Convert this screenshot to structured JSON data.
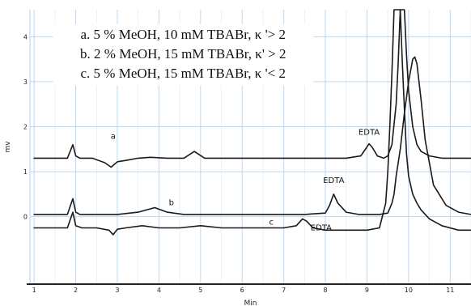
{
  "chart_data": {
    "type": "line",
    "xlabel": "Min",
    "ylabel": "mv",
    "xlim": [
      0.9,
      11.5
    ],
    "ylim": [
      -1.5,
      4.6
    ],
    "x_ticks": [
      "1",
      "2",
      "3",
      "4",
      "5",
      "6",
      "7",
      "8",
      "9",
      "10",
      "11"
    ],
    "y_ticks": [
      "0",
      "1",
      "2",
      "3",
      "4"
    ],
    "grid": true,
    "colors": {
      "trace": "#1a1a1a",
      "grid": "#bcd9f2",
      "baseline": "#222222"
    },
    "legend": [
      "a. 5 % MeOH, 10 mM TBABr, κ '> 2",
      "b. 2 % MeOH, 15 mM TBABr, κ' > 2",
      "c. 5 % MeOH, 15 mM TBABr, κ '< 2"
    ],
    "legend_placement": "top-left",
    "series": [
      {
        "name": "a",
        "label": "a",
        "label_at": [
          2.9,
          1.73
        ],
        "x": [
          1.0,
          1.8,
          1.93,
          2.0,
          2.1,
          2.4,
          2.7,
          2.85,
          3.0,
          3.2,
          3.5,
          3.8,
          4.2,
          4.6,
          4.85,
          5.1,
          5.5,
          6.0,
          6.5,
          7.0,
          7.5,
          8.0,
          8.5,
          8.85,
          9.0,
          9.05,
          9.12,
          9.25,
          9.4,
          9.5,
          9.6,
          9.7,
          9.75,
          9.8,
          9.85,
          9.9,
          9.95,
          10.0,
          10.1,
          10.2,
          10.3,
          10.5,
          10.8,
          11.2,
          11.5
        ],
        "y": [
          1.3,
          1.3,
          1.6,
          1.35,
          1.3,
          1.3,
          1.2,
          1.1,
          1.22,
          1.25,
          1.3,
          1.32,
          1.3,
          1.3,
          1.45,
          1.3,
          1.3,
          1.3,
          1.3,
          1.3,
          1.3,
          1.3,
          1.3,
          1.35,
          1.55,
          1.62,
          1.55,
          1.35,
          1.3,
          1.35,
          1.6,
          2.5,
          3.4,
          4.6,
          4.6,
          4.6,
          3.6,
          2.8,
          2.0,
          1.6,
          1.45,
          1.35,
          1.3,
          1.3,
          1.3
        ]
      },
      {
        "name": "b",
        "label": "b",
        "label_at": [
          4.3,
          0.25
        ],
        "x": [
          1.0,
          1.8,
          1.93,
          2.0,
          2.1,
          2.5,
          2.8,
          3.0,
          3.5,
          3.9,
          4.2,
          4.6,
          5.0,
          5.5,
          6.0,
          6.5,
          7.0,
          7.5,
          8.0,
          8.1,
          8.2,
          8.3,
          8.5,
          8.8,
          9.0,
          9.3,
          9.5,
          9.6,
          9.65,
          9.7,
          9.8,
          9.9,
          10.0,
          10.1,
          10.15,
          10.2,
          10.3,
          10.4,
          10.6,
          10.9,
          11.2,
          11.5
        ],
        "y": [
          0.05,
          0.05,
          0.4,
          0.1,
          0.05,
          0.05,
          0.05,
          0.05,
          0.1,
          0.2,
          0.1,
          0.05,
          0.05,
          0.05,
          0.05,
          0.05,
          0.05,
          0.05,
          0.08,
          0.25,
          0.5,
          0.3,
          0.1,
          0.05,
          0.05,
          0.05,
          0.08,
          0.3,
          0.5,
          0.9,
          1.5,
          2.3,
          3.0,
          3.5,
          3.55,
          3.4,
          2.6,
          1.7,
          0.7,
          0.25,
          0.1,
          0.05
        ]
      },
      {
        "name": "c",
        "label": "c",
        "label_at": [
          6.7,
          -0.18
        ],
        "x": [
          1.0,
          1.8,
          1.93,
          2.0,
          2.15,
          2.5,
          2.8,
          2.9,
          3.0,
          3.2,
          3.6,
          4.0,
          4.5,
          5.0,
          5.5,
          6.0,
          6.5,
          7.0,
          7.3,
          7.45,
          7.55,
          7.7,
          8.0,
          8.5,
          9.0,
          9.3,
          9.45,
          9.5,
          9.55,
          9.6,
          9.65,
          9.7,
          9.75,
          9.8,
          9.85,
          9.9,
          9.95,
          10.0,
          10.1,
          10.2,
          10.3,
          10.5,
          10.8,
          11.2,
          11.5
        ],
        "y": [
          -0.25,
          -0.25,
          0.1,
          -0.2,
          -0.25,
          -0.25,
          -0.3,
          -0.4,
          -0.28,
          -0.25,
          -0.2,
          -0.25,
          -0.25,
          -0.2,
          -0.25,
          -0.25,
          -0.25,
          -0.25,
          -0.2,
          -0.05,
          -0.1,
          -0.25,
          -0.3,
          -0.3,
          -0.3,
          -0.25,
          0.3,
          1.0,
          2.0,
          3.2,
          4.6,
          4.6,
          4.6,
          4.6,
          3.4,
          2.4,
          1.4,
          0.9,
          0.5,
          0.3,
          0.15,
          -0.05,
          -0.2,
          -0.3,
          -0.3
        ]
      }
    ],
    "annotations": [
      {
        "text": "EDTA",
        "x": 9.05,
        "y": 1.82
      },
      {
        "text": "EDTA",
        "x": 8.2,
        "y": 0.75
      },
      {
        "text": "EDTA",
        "x": 7.9,
        "y": -0.3
      }
    ]
  }
}
